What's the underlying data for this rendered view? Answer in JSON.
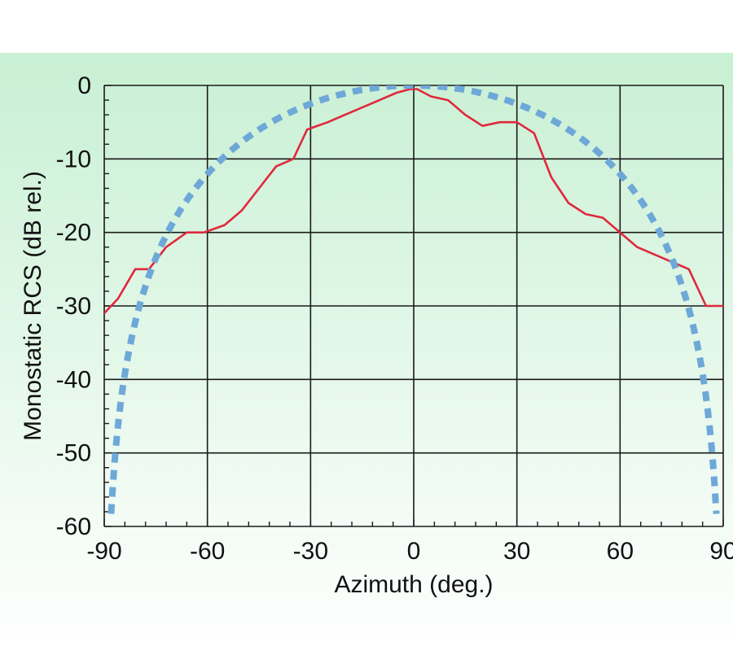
{
  "chart_data": {
    "type": "line",
    "title": "",
    "xlabel": "Azimuth (deg.)",
    "ylabel": "Monostatic RCS (dB rel.)",
    "xlim": [
      -90,
      90
    ],
    "ylim": [
      -60,
      0
    ],
    "xticks": [
      -90,
      -60,
      -30,
      0,
      30,
      60,
      90
    ],
    "yticks": [
      0,
      -10,
      -20,
      -30,
      -40,
      -50,
      -60
    ],
    "xtick_labels": [
      "-90",
      "-60",
      "-30",
      "0",
      "30",
      "60",
      "90"
    ],
    "ytick_labels": [
      "0",
      "-10",
      "-20",
      "-30",
      "-40",
      "-50",
      "-60"
    ],
    "grid": true,
    "legend": "none",
    "colors": {
      "background_top": "#c8f0d3",
      "background_bottom": "#ffffff",
      "grid": "#1a1a1a",
      "measured": "#e0283c",
      "reference": "#6ea8d8"
    },
    "series": [
      {
        "style": "solid",
        "color": "#e0283c",
        "x": [
          -90,
          -86,
          -81,
          -77,
          -72,
          -66,
          -61,
          -55,
          -50,
          -45,
          -40,
          -35,
          -31,
          -25,
          -20,
          -15,
          -10,
          -5,
          -1,
          0,
          1,
          5,
          10,
          15,
          20,
          25,
          30,
          35,
          40,
          45,
          50,
          55,
          60,
          65,
          70,
          75,
          80,
          85,
          90
        ],
        "y": [
          -31,
          -29,
          -25,
          -25,
          -22,
          -20,
          -20,
          -19,
          -17,
          -14,
          -11,
          -10,
          -6,
          -5,
          -4,
          -3,
          -2,
          -1,
          -0.5,
          -0.5,
          -0.5,
          -1.5,
          -2,
          -4,
          -5.5,
          -5,
          -5,
          -6.5,
          -12.5,
          -16,
          -17.5,
          -18,
          -20,
          -22,
          -23,
          -24,
          -25,
          -30,
          -30
        ]
      },
      {
        "style": "dashed",
        "color": "#6ea8d8",
        "function": "cos_squared",
        "x_range": [
          -88,
          88
        ],
        "y_floor": -60
      }
    ]
  }
}
